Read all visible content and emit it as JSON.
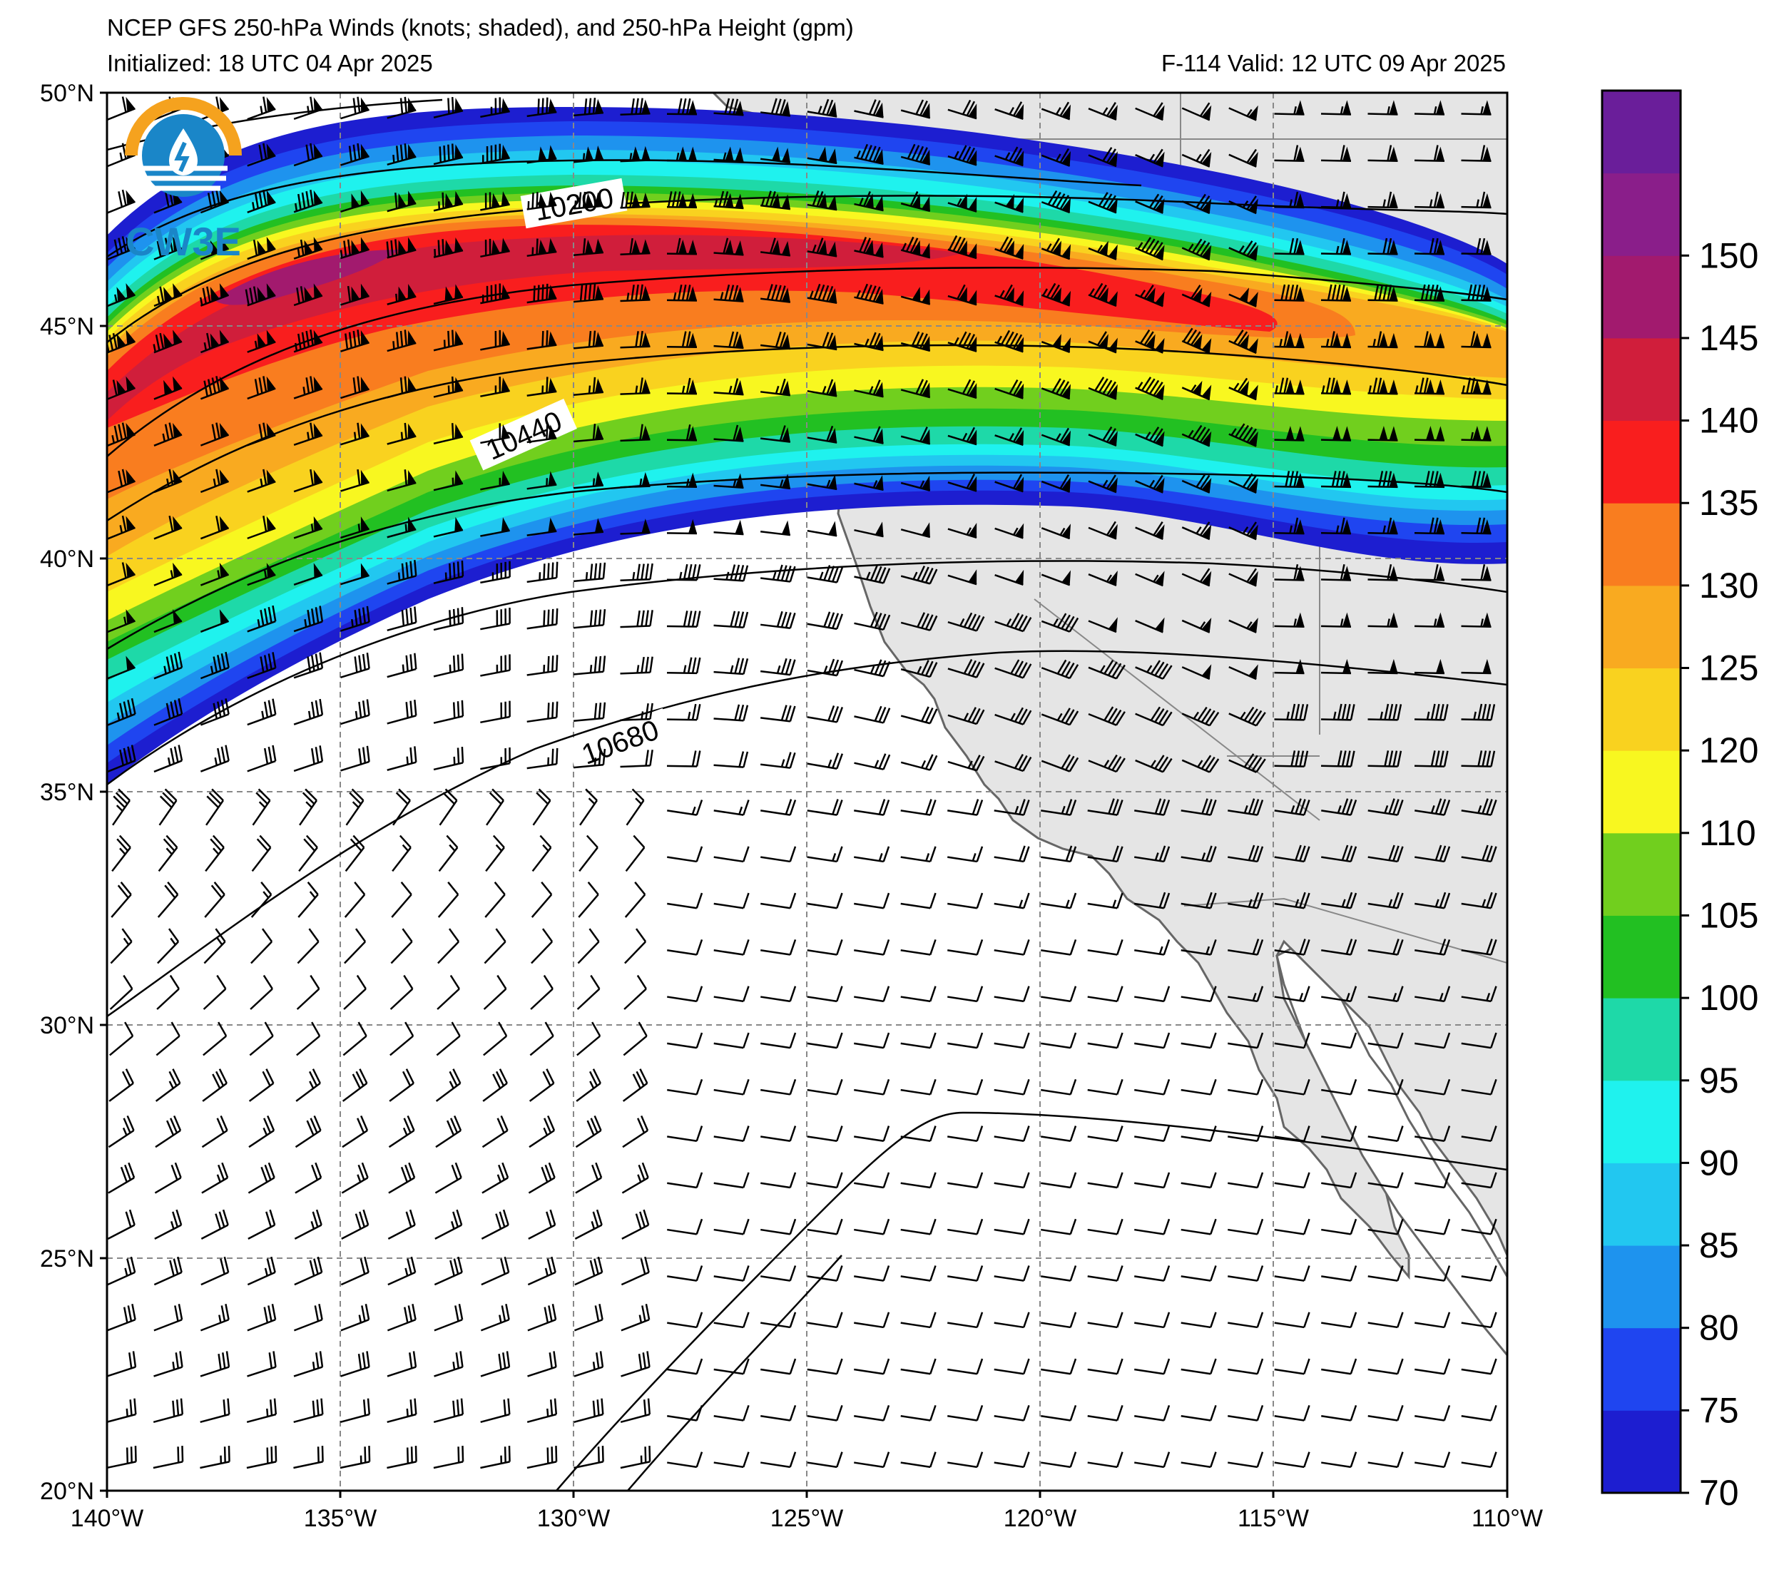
{
  "header": {
    "title": "NCEP GFS 250-hPa Winds (knots; shaded), and 250-hPa Height (gpm)",
    "init": "Initialized: 18 UTC 04 Apr 2025",
    "valid": "F-114  Valid: 12 UTC 09 Apr 2025"
  },
  "logo": {
    "text": "CW3E"
  },
  "axes": {
    "lat_labels": [
      "50°N",
      "45°N",
      "40°N",
      "35°N",
      "30°N",
      "25°N",
      "20°N"
    ],
    "lon_labels": [
      "140°W",
      "135°W",
      "130°W",
      "125°W",
      "120°W",
      "115°W",
      "110°W"
    ],
    "lat_values": [
      50,
      45,
      40,
      35,
      30,
      25,
      20
    ],
    "lon_values": [
      -140,
      -135,
      -130,
      -125,
      -120,
      -115,
      -110
    ],
    "grid": "dashed"
  },
  "contours": {
    "labels": [
      "10200",
      "10440",
      "10680"
    ]
  },
  "colorbar": {
    "ticks": [
      "70",
      "75",
      "80",
      "85",
      "90",
      "95",
      "100",
      "105",
      "110",
      "120",
      "125",
      "130",
      "135",
      "140",
      "145",
      "150"
    ],
    "bin_edges": [
      70,
      75,
      80,
      85,
      90,
      95,
      100,
      105,
      110,
      120,
      125,
      130,
      135,
      140,
      145,
      150,
      155
    ],
    "colors": [
      "#1d1ed0",
      "#1f45f0",
      "#1e93ee",
      "#22c7f0",
      "#1ff2ee",
      "#1ed9a8",
      "#22c022",
      "#71cf1e",
      "#f8f720",
      "#f9d21f",
      "#f9aa20",
      "#f97d1f",
      "#f91e1e",
      "#d01e3b",
      "#a21a6e",
      "#8a1e8a",
      "#6a1e9a"
    ]
  },
  "jet": {
    "max_speed_kt": 145
  },
  "land_color": "#e5e5e5"
}
